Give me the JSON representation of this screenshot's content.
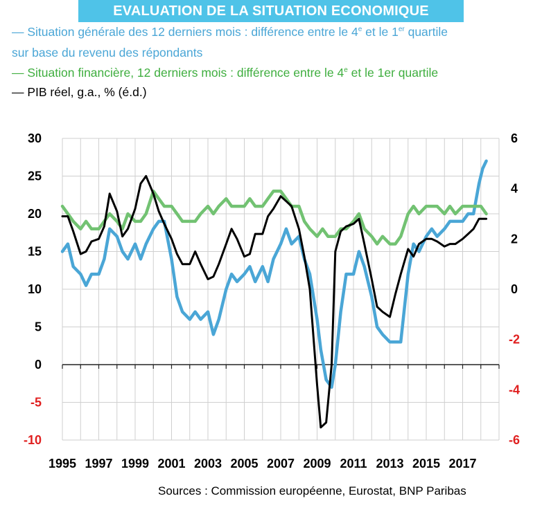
{
  "header": {
    "title": "EVALUATION DE LA SITUATION ECONOMIQUE",
    "legend": {
      "blue_line1_a": "— Situation générale des 12 derniers mois : différence entre le 4",
      "blue_sup1": "e",
      "blue_line1_b": "  et le 1",
      "blue_sup2": "er",
      "blue_line1_c": " quartile",
      "blue_line2": "sur base du revenu des répondants",
      "green_a": "— Situation financière, 12 derniers mois : différence entre le 4",
      "green_sup": "e",
      "green_b": " et le 1er quartile",
      "black": "— PIB réel, g.a., % (é.d.)"
    }
  },
  "footer": {
    "source": "Sources : Commission européenne, Eurostat, BNP Paribas"
  },
  "colors": {
    "banner": "#4fc3e8",
    "blue": "#4aa6d6",
    "green": "#72c272",
    "black": "#000000",
    "negative_tick": "#e02020",
    "grid": "#cfcfcf"
  },
  "chart_data": {
    "type": "line",
    "title": "EVALUATION DE LA SITUATION ECONOMIQUE",
    "grid": true,
    "x_ticks": [
      1995,
      1997,
      1999,
      2001,
      2003,
      2005,
      2007,
      2009,
      2011,
      2013,
      2015,
      2017
    ],
    "xlim": [
      1995,
      2019
    ],
    "y_left": {
      "lim": [
        -10,
        30
      ],
      "ticks": [
        30,
        25,
        20,
        15,
        10,
        5,
        0,
        -5,
        -10
      ]
    },
    "y_right": {
      "lim": [
        -6,
        6
      ],
      "ticks": [
        6,
        4,
        2,
        0,
        -2,
        -4,
        -6
      ]
    },
    "series": [
      {
        "name": "Situation générale des 12 derniers mois : différence entre le 4e et le 1er quartile sur base du revenu des répondants",
        "axis": "left",
        "color": "#4aa6d6",
        "x": [
          1995.0,
          1995.3,
          1995.6,
          1996.0,
          1996.3,
          1996.6,
          1997.0,
          1997.3,
          1997.6,
          1998.0,
          1998.3,
          1998.6,
          1999.0,
          1999.3,
          1999.6,
          2000.0,
          2000.3,
          2000.6,
          2001.0,
          2001.3,
          2001.6,
          2002.0,
          2002.3,
          2002.6,
          2003.0,
          2003.3,
          2003.6,
          2004.0,
          2004.3,
          2004.6,
          2005.0,
          2005.3,
          2005.6,
          2006.0,
          2006.3,
          2006.6,
          2007.0,
          2007.3,
          2007.6,
          2008.0,
          2008.3,
          2008.6,
          2009.0,
          2009.2,
          2009.5,
          2009.8,
          2010.0,
          2010.3,
          2010.6,
          2011.0,
          2011.3,
          2011.6,
          2012.0,
          2012.3,
          2012.6,
          2013.0,
          2013.3,
          2013.6,
          2014.0,
          2014.3,
          2014.6,
          2015.0,
          2015.3,
          2015.6,
          2016.0,
          2016.3,
          2016.6,
          2017.0,
          2017.3,
          2017.6,
          2017.9,
          2018.1,
          2018.3
        ],
        "values": [
          15,
          16,
          13,
          12,
          10.5,
          12,
          12,
          14,
          18,
          17,
          15,
          14,
          16,
          14,
          16,
          18,
          19,
          19,
          14,
          9,
          7,
          6,
          7,
          6,
          7,
          4,
          6,
          10,
          12,
          11,
          12,
          13,
          11,
          13,
          11,
          14,
          16,
          18,
          16,
          17,
          14,
          12,
          6,
          2,
          -2,
          -3,
          0,
          7,
          12,
          12,
          15,
          13,
          9,
          5,
          4,
          3,
          3,
          3,
          12,
          16,
          15,
          17,
          18,
          17,
          18,
          19,
          19,
          19,
          20,
          20,
          24,
          26,
          27
        ]
      },
      {
        "name": "Situation financière, 12 derniers mois : différence entre le 4e et le 1er quartile",
        "axis": "left",
        "color": "#72c272",
        "x": [
          1995.0,
          1995.3,
          1995.6,
          1996.0,
          1996.3,
          1996.6,
          1997.0,
          1997.3,
          1997.6,
          1998.0,
          1998.3,
          1998.6,
          1999.0,
          1999.3,
          1999.6,
          2000.0,
          2000.3,
          2000.6,
          2001.0,
          2001.3,
          2001.6,
          2002.0,
          2002.3,
          2002.6,
          2003.0,
          2003.3,
          2003.6,
          2004.0,
          2004.3,
          2004.6,
          2005.0,
          2005.3,
          2005.6,
          2006.0,
          2006.3,
          2006.6,
          2007.0,
          2007.3,
          2007.6,
          2008.0,
          2008.3,
          2008.6,
          2009.0,
          2009.3,
          2009.6,
          2010.0,
          2010.3,
          2010.6,
          2011.0,
          2011.3,
          2011.6,
          2012.0,
          2012.3,
          2012.6,
          2013.0,
          2013.3,
          2013.6,
          2014.0,
          2014.3,
          2014.6,
          2015.0,
          2015.3,
          2015.6,
          2016.0,
          2016.3,
          2016.6,
          2017.0,
          2017.3,
          2017.6,
          2018.0,
          2018.3
        ],
        "values": [
          21,
          20,
          19,
          18,
          19,
          18,
          18,
          19,
          20,
          19,
          18,
          20,
          19,
          19,
          20,
          23,
          22,
          21,
          21,
          20,
          19,
          19,
          19,
          20,
          21,
          20,
          21,
          22,
          21,
          21,
          21,
          22,
          21,
          21,
          22,
          23,
          23,
          22,
          21,
          21,
          19,
          18,
          17,
          18,
          17,
          17,
          18,
          18,
          19,
          20,
          18,
          17,
          16,
          17,
          16,
          16,
          17,
          20,
          21,
          20,
          21,
          21,
          21,
          20,
          21,
          20,
          21,
          21,
          21,
          21,
          20
        ]
      },
      {
        "name": "PIB réel, g.a., % (é.d.)",
        "axis": "right",
        "color": "#000000",
        "x": [
          1995.0,
          1995.3,
          1995.6,
          1996.0,
          1996.3,
          1996.6,
          1997.0,
          1997.3,
          1997.6,
          1998.0,
          1998.3,
          1998.6,
          1999.0,
          1999.3,
          1999.6,
          2000.0,
          2000.3,
          2000.6,
          2001.0,
          2001.3,
          2001.6,
          2002.0,
          2002.3,
          2002.6,
          2003.0,
          2003.3,
          2003.6,
          2004.0,
          2004.3,
          2004.6,
          2005.0,
          2005.3,
          2005.6,
          2006.0,
          2006.3,
          2006.6,
          2007.0,
          2007.3,
          2007.6,
          2008.0,
          2008.3,
          2008.6,
          2009.0,
          2009.2,
          2009.5,
          2009.8,
          2010.0,
          2010.3,
          2010.6,
          2011.0,
          2011.3,
          2011.6,
          2012.0,
          2012.3,
          2012.6,
          2013.0,
          2013.3,
          2013.6,
          2014.0,
          2014.3,
          2014.6,
          2015.0,
          2015.3,
          2015.6,
          2016.0,
          2016.3,
          2016.6,
          2017.0,
          2017.3,
          2017.6,
          2017.9,
          2018.3
        ],
        "values": [
          2.9,
          2.9,
          2.3,
          1.4,
          1.5,
          1.9,
          2.0,
          2.5,
          3.8,
          3.1,
          2.1,
          2.4,
          3.2,
          4.2,
          4.5,
          3.8,
          3.1,
          2.6,
          2.0,
          1.4,
          1.0,
          1.0,
          1.5,
          1.0,
          0.4,
          0.5,
          1.0,
          1.8,
          2.4,
          2.0,
          1.3,
          1.4,
          2.2,
          2.2,
          2.9,
          3.2,
          3.7,
          3.5,
          3.3,
          2.4,
          1.3,
          0.0,
          -3.8,
          -5.5,
          -5.3,
          -3.0,
          1.5,
          2.3,
          2.5,
          2.6,
          2.8,
          1.8,
          0.4,
          -0.7,
          -0.9,
          -1.1,
          -0.2,
          0.6,
          1.6,
          1.3,
          1.8,
          2.0,
          2.0,
          1.9,
          1.7,
          1.8,
          1.8,
          2.0,
          2.2,
          2.4,
          2.8,
          2.8
        ]
      }
    ],
    "source": "Sources : Commission européenne, Eurostat, BNP Paribas"
  }
}
